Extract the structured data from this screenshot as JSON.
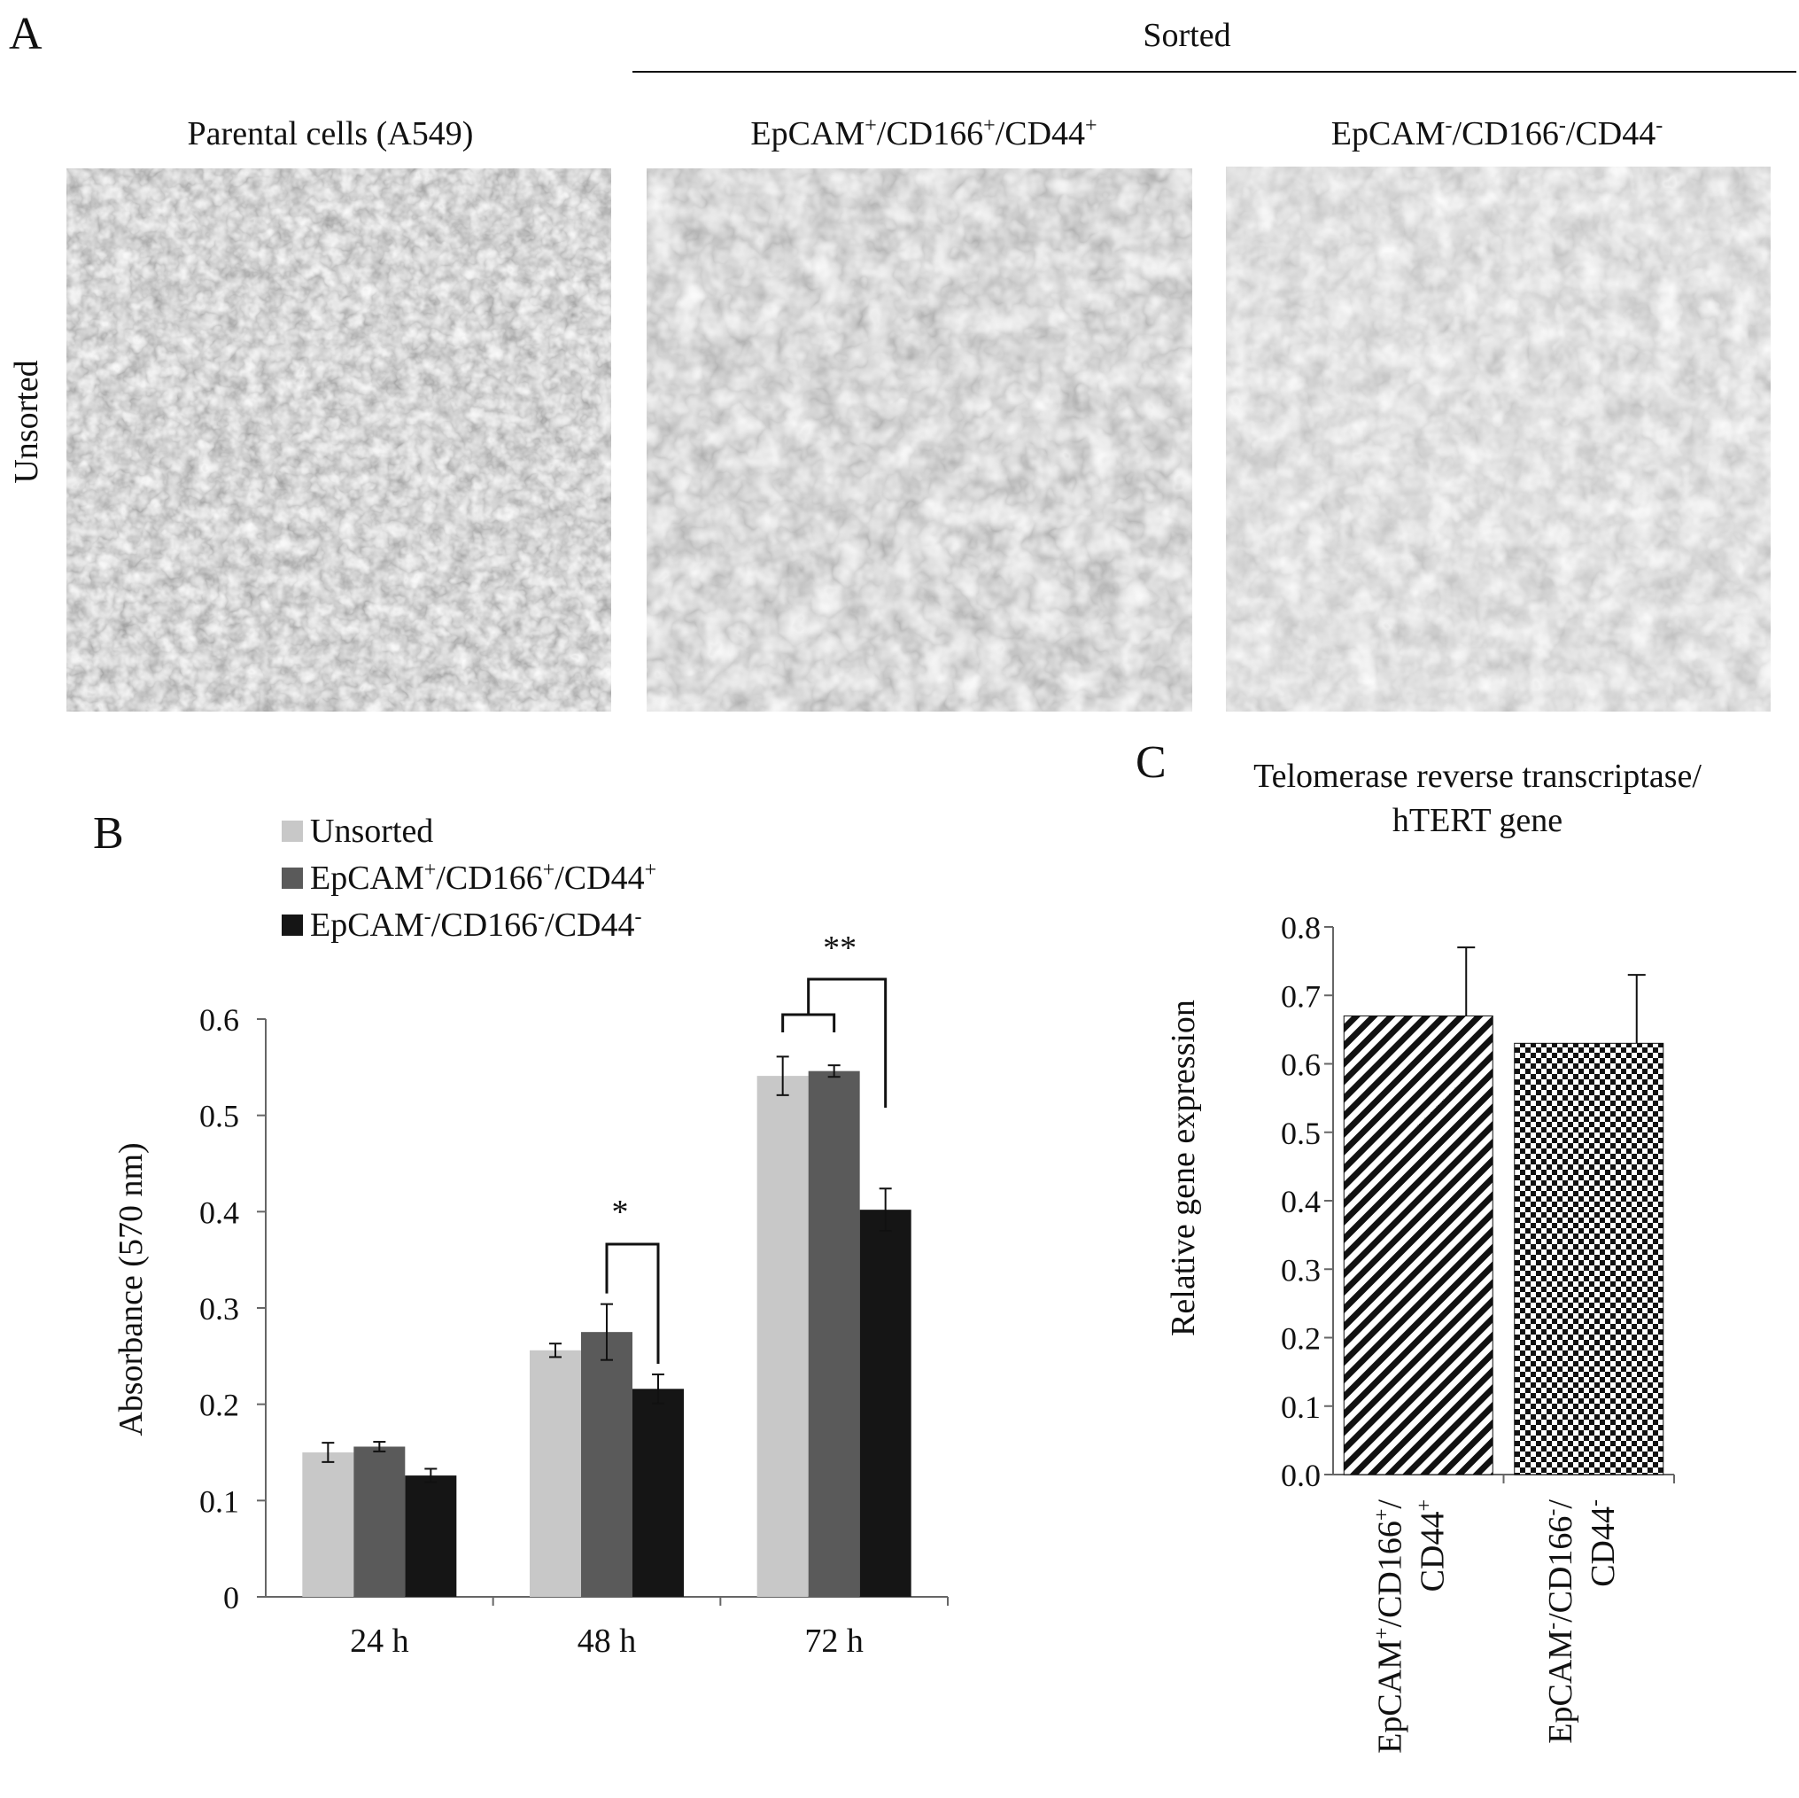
{
  "panel_a": {
    "letter": "A",
    "group_label": "Sorted",
    "row_label": "Unsorted",
    "images": [
      {
        "title_main": "Parental cells (A549)",
        "sup": [
          "",
          "",
          ""
        ]
      },
      {
        "title_main": "EpCAM",
        "parts": [
          "EpCAM",
          "/CD166",
          "/CD44"
        ],
        "sup": [
          "+",
          "+",
          "+"
        ]
      },
      {
        "title_main": "EpCAM",
        "parts": [
          "EpCAM",
          "/CD166",
          "/CD44"
        ],
        "sup": [
          "-",
          "-",
          "-"
        ]
      }
    ]
  },
  "chart_data": [
    {
      "panel": "B",
      "type": "bar",
      "categories": [
        "24 h",
        "48 h",
        "72 h"
      ],
      "series": [
        {
          "name": "Unsorted",
          "name_parts": [
            "Unsorted"
          ],
          "sups": [
            ""
          ],
          "color": "#c8c8c8",
          "values": [
            0.15,
            0.256,
            0.541
          ],
          "errors": [
            0.01,
            0.007,
            0.02
          ]
        },
        {
          "name": "EpCAM+/CD166+/CD44+",
          "name_parts": [
            "EpCAM",
            "/CD166",
            "/CD44"
          ],
          "sups": [
            "+",
            "+",
            "+"
          ],
          "color": "#5a5a5a",
          "values": [
            0.156,
            0.275,
            0.546
          ],
          "errors": [
            0.005,
            0.029,
            0.006
          ]
        },
        {
          "name": "EpCAM-/CD166-/CD44-",
          "name_parts": [
            "EpCAM",
            "/CD166",
            "/CD44"
          ],
          "sups": [
            "-",
            "-",
            "-"
          ],
          "color": "#151515",
          "values": [
            0.126,
            0.216,
            0.402
          ],
          "errors": [
            0.007,
            0.015,
            0.022
          ]
        }
      ],
      "ylabel": "Absorbance (570 nm)",
      "ylim": [
        0,
        0.6
      ],
      "yticks": [
        "0",
        "0.1",
        "0.2",
        "0.3",
        "0.4",
        "0.5",
        "0.6"
      ],
      "legend_position": "top-left",
      "annotations": [
        {
          "label": "*",
          "category": "48 h"
        },
        {
          "label": "**",
          "category": "72 h"
        }
      ]
    },
    {
      "panel": "C",
      "type": "bar",
      "title": [
        "Telomerase reverse transcriptase/",
        "hTERT gene"
      ],
      "categories": [
        "EpCAM+/CD166+/CD44+",
        "EpCAM-/CD166-/CD44-"
      ],
      "category_lines": [
        [
          {
            "parts": [
              "EpCAM",
              "/CD166",
              "/"
            ],
            "sups": [
              "+",
              "+",
              ""
            ]
          },
          {
            "parts": [
              "CD44"
            ],
            "sups": [
              "+"
            ]
          }
        ],
        [
          {
            "parts": [
              "EpCAM",
              "/CD166",
              "/"
            ],
            "sups": [
              "-",
              "-",
              ""
            ]
          },
          {
            "parts": [
              "CD44"
            ],
            "sups": [
              "-"
            ]
          }
        ]
      ],
      "values": [
        0.67,
        0.63
      ],
      "errors": [
        0.1,
        0.1
      ],
      "patterns": [
        "diagonal-hatch",
        "checkerboard"
      ],
      "ylabel": "Relative gene expression",
      "ylim": [
        0,
        0.8
      ],
      "yticks": [
        "0.0",
        "0.1",
        "0.2",
        "0.3",
        "0.4",
        "0.5",
        "0.6",
        "0.7",
        "0.8"
      ]
    }
  ],
  "panel_b_letter": "B",
  "panel_c_letter": "C"
}
